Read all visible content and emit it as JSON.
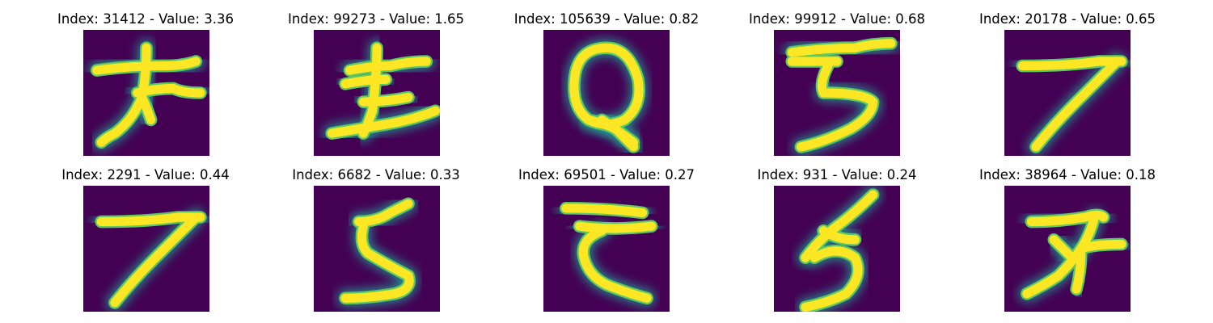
{
  "chart_data": {
    "type": "image-grid",
    "colormap": "viridis",
    "colors": {
      "background": "#440154",
      "edge": "#21918c",
      "glow": "#5ec962",
      "ink": "#fde725"
    },
    "panels": [
      {
        "title": "Index: 31412 - Value: 3.36",
        "index": 31412,
        "value": 3.36,
        "glyph": "kana-o"
      },
      {
        "title": "Index: 99273 - Value: 1.65",
        "index": 99273,
        "value": 1.65,
        "glyph": "kana-ki-variant"
      },
      {
        "title": "Index: 105639 - Value: 0.82",
        "index": 105639,
        "value": 0.82,
        "glyph": "loop-tail"
      },
      {
        "title": "Index: 99912 - Value: 0.68",
        "index": 99912,
        "value": 0.68,
        "glyph": "digit-3-like"
      },
      {
        "title": "Index: 20178 - Value: 0.65",
        "index": 20178,
        "value": 0.65,
        "glyph": "digit-7-like"
      },
      {
        "title": "Index: 2291 - Value: 0.44",
        "index": 2291,
        "value": 0.44,
        "glyph": "digit-7-like"
      },
      {
        "title": "Index: 6682 - Value: 0.33",
        "index": 6682,
        "value": 0.33,
        "glyph": "digit-5-like"
      },
      {
        "title": "Index: 69501 - Value: 0.27",
        "index": 69501,
        "value": 0.27,
        "glyph": "kana-te-like"
      },
      {
        "title": "Index: 931 - Value: 0.24",
        "index": 931,
        "value": 0.24,
        "glyph": "digit-5-cursive"
      },
      {
        "title": "Index: 38964 - Value: 0.18",
        "index": 38964,
        "value": 0.18,
        "glyph": "kana-su-like"
      }
    ]
  }
}
